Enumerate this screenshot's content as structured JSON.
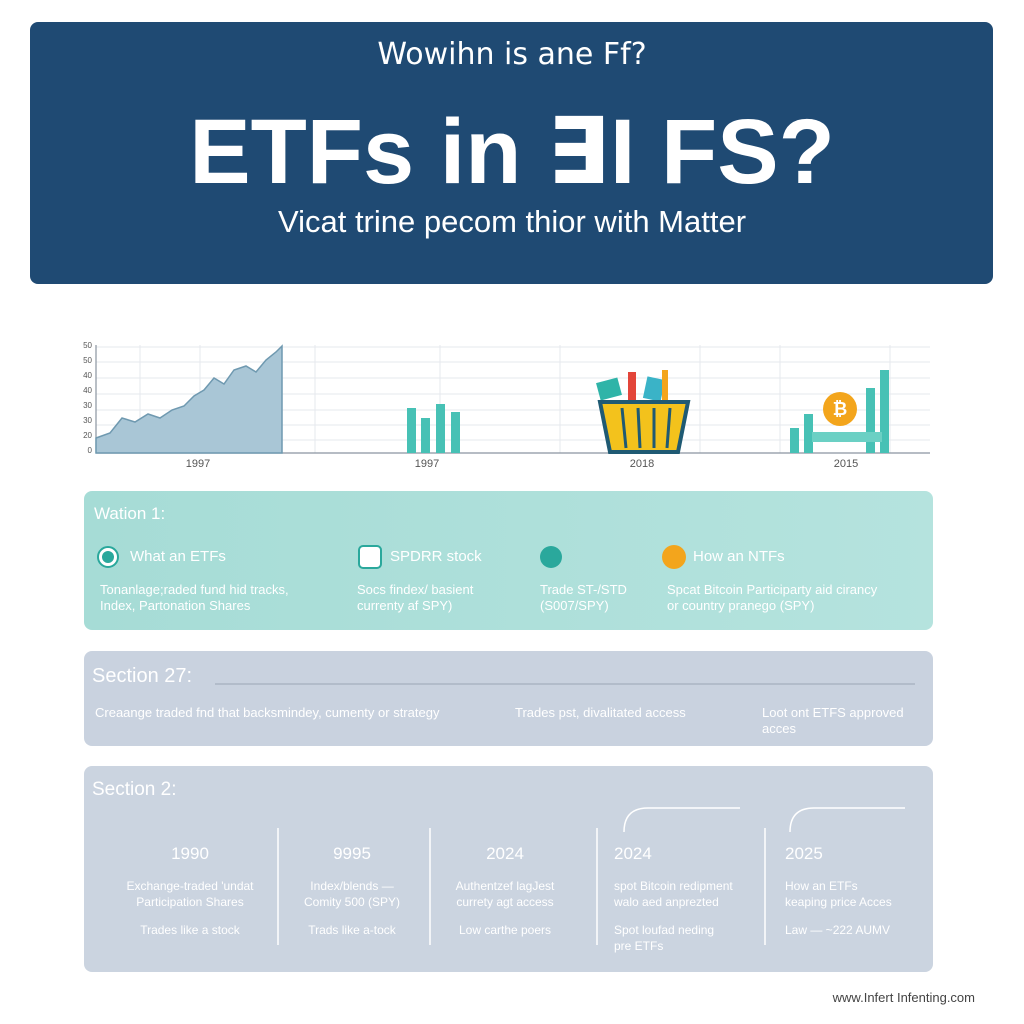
{
  "header": {
    "question": "Wowihn is ane Ff?",
    "title": "ETFs in ∃I FS?",
    "subtitle": "Vicat trine pecom thior with Matter"
  },
  "chart": {
    "yticks": [
      "50",
      "50",
      "40",
      "40",
      "30",
      "30",
      "20",
      "0"
    ],
    "xlabels": [
      "1997",
      "1997",
      "2018",
      "2015"
    ]
  },
  "section1": {
    "title": "Wation 1:",
    "items": [
      {
        "heading": "What an ETFs",
        "lines": [
          "Tonanlage;raded fund hid tracks,",
          "Index, Partonation Shares"
        ]
      },
      {
        "heading": "SPDRR stock",
        "lines": [
          "Socs findex/ basient",
          "currenty af SPY)"
        ]
      },
      {
        "lines": [
          "Trade ST-/STD",
          "(S007/SPY)"
        ]
      },
      {
        "heading": "How an NTFs",
        "lines": [
          "Spcat Bitcoin Participarty aid cirancy",
          "or country pranego (SPY)"
        ]
      }
    ]
  },
  "section2": {
    "title": "Section 27:",
    "items": [
      [
        "Creaange traded fnd that backsmindey, cumenty or strategy"
      ],
      [
        "Trades pst, divalitated access"
      ],
      [
        "Loot ont ETFS approved",
        "acces"
      ]
    ]
  },
  "section3": {
    "title": "Section 2:",
    "columns": [
      {
        "year": "1990",
        "lines": [
          "Exchange-traded 'undat",
          "Participation Shares"
        ],
        "note": [
          "Trades like a stock"
        ]
      },
      {
        "year": "9995",
        "lines": [
          "Index/blends —",
          "Comity 500 (SPY)"
        ],
        "note": [
          "Trads like a-tock"
        ]
      },
      {
        "year": "2024",
        "lines": [
          "Authentzef lagJest",
          "currety agt access"
        ],
        "note": [
          "Low carthe poers"
        ]
      },
      {
        "year": "2024",
        "lines": [
          "spot Bitcoin redipment",
          "walo aed anprezted"
        ],
        "note": [
          "Spot loufad neding",
          "pre ETFs"
        ]
      },
      {
        "year": "2025",
        "lines": [
          "How an ETFs",
          "keaping price Acces"
        ],
        "note": [
          "Law — ~222 AUMV"
        ]
      }
    ]
  },
  "footer": "www.Infert Infenting.com"
}
